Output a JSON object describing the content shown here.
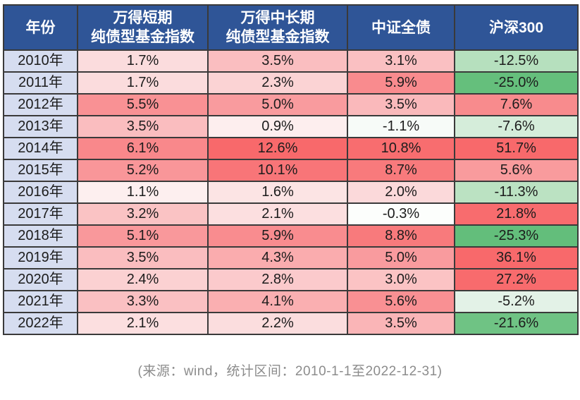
{
  "table": {
    "header": {
      "bg": "#2F5597",
      "text_color": "#FFFFFF",
      "columns": [
        {
          "name": "year",
          "lines": [
            "年份"
          ]
        },
        {
          "name": "wind-short-term-pure-bond-fund-index",
          "lines": [
            "万得短期",
            "纯债型基金指数"
          ]
        },
        {
          "name": "wind-mid-long-term-pure-bond-fund-index",
          "lines": [
            "万得中长期",
            "纯债型基金指数"
          ]
        },
        {
          "name": "csi-aggregate-bond",
          "lines": [
            "中证全债"
          ]
        },
        {
          "name": "csi-300",
          "lines": [
            "沪深300"
          ]
        }
      ]
    },
    "year_col_bg": "#D6DDF0",
    "border_color": "#3a3a3a",
    "rows": [
      {
        "year": "2010年",
        "cells": [
          {
            "value": "1.7%",
            "bg": "#FBDCDD"
          },
          {
            "value": "3.5%",
            "bg": "#FABEC0"
          },
          {
            "value": "3.1%",
            "bg": "#FAC0C2"
          },
          {
            "value": "-12.5%",
            "bg": "#B6E0BE"
          }
        ]
      },
      {
        "year": "2011年",
        "cells": [
          {
            "value": "1.7%",
            "bg": "#FBDCDD"
          },
          {
            "value": "2.3%",
            "bg": "#FBD3D4"
          },
          {
            "value": "5.9%",
            "bg": "#F98B8E"
          },
          {
            "value": "-25.0%",
            "bg": "#65BF7C"
          }
        ]
      },
      {
        "year": "2012年",
        "cells": [
          {
            "value": "5.5%",
            "bg": "#F99194"
          },
          {
            "value": "5.0%",
            "bg": "#F99B9E"
          },
          {
            "value": "3.5%",
            "bg": "#FAB9BB"
          },
          {
            "value": "7.6%",
            "bg": "#F88B8D"
          }
        ]
      },
      {
        "year": "2013年",
        "cells": [
          {
            "value": "3.5%",
            "bg": "#FABDBF"
          },
          {
            "value": "0.9%",
            "bg": "#FDEEEE"
          },
          {
            "value": "-1.1%",
            "bg": "#F7FBF8"
          },
          {
            "value": "-7.6%",
            "bg": "#D5EDDA"
          }
        ]
      },
      {
        "year": "2014年",
        "cells": [
          {
            "value": "6.1%",
            "bg": "#F9888B"
          },
          {
            "value": "12.6%",
            "bg": "#F8696B"
          },
          {
            "value": "10.8%",
            "bg": "#F86D6F"
          },
          {
            "value": "51.7%",
            "bg": "#F8696B"
          }
        ]
      },
      {
        "year": "2015年",
        "cells": [
          {
            "value": "5.2%",
            "bg": "#F99699"
          },
          {
            "value": "10.1%",
            "bg": "#F87578"
          },
          {
            "value": "8.7%",
            "bg": "#F87A7C"
          },
          {
            "value": "5.6%",
            "bg": "#F99B9D"
          }
        ]
      },
      {
        "year": "2016年",
        "cells": [
          {
            "value": "1.1%",
            "bg": "#FDEFEF"
          },
          {
            "value": "1.6%",
            "bg": "#FCE4E4"
          },
          {
            "value": "2.0%",
            "bg": "#FBD9DA"
          },
          {
            "value": "-11.3%",
            "bg": "#BBE2C2"
          }
        ]
      },
      {
        "year": "2017年",
        "cells": [
          {
            "value": "3.2%",
            "bg": "#FAC3C4"
          },
          {
            "value": "2.1%",
            "bg": "#FCDFE0"
          },
          {
            "value": "-0.3%",
            "bg": "#FCFEFC"
          },
          {
            "value": "21.8%",
            "bg": "#F86C6E"
          }
        ]
      },
      {
        "year": "2018年",
        "cells": [
          {
            "value": "5.1%",
            "bg": "#F9989B"
          },
          {
            "value": "5.9%",
            "bg": "#F98C8F"
          },
          {
            "value": "8.8%",
            "bg": "#F87A7C"
          },
          {
            "value": "-25.3%",
            "bg": "#63BE7B"
          }
        ]
      },
      {
        "year": "2019年",
        "cells": [
          {
            "value": "3.5%",
            "bg": "#FABDBF"
          },
          {
            "value": "4.3%",
            "bg": "#FAACAE"
          },
          {
            "value": "5.0%",
            "bg": "#F99B9E"
          },
          {
            "value": "36.1%",
            "bg": "#F8696B"
          }
        ]
      },
      {
        "year": "2020年",
        "cells": [
          {
            "value": "2.4%",
            "bg": "#FBD1D2"
          },
          {
            "value": "2.8%",
            "bg": "#FBCACC"
          },
          {
            "value": "3.0%",
            "bg": "#FBC3C4"
          },
          {
            "value": "27.2%",
            "bg": "#F86B6D"
          }
        ]
      },
      {
        "year": "2021年",
        "cells": [
          {
            "value": "3.3%",
            "bg": "#FAC0C2"
          },
          {
            "value": "4.1%",
            "bg": "#FAAFB1"
          },
          {
            "value": "5.6%",
            "bg": "#F99093"
          },
          {
            "value": "-5.2%",
            "bg": "#E3F2E7"
          }
        ]
      },
      {
        "year": "2022年",
        "cells": [
          {
            "value": "2.1%",
            "bg": "#FCDFE0"
          },
          {
            "value": "2.2%",
            "bg": "#FBDDDE"
          },
          {
            "value": "3.5%",
            "bg": "#FAB5B7"
          },
          {
            "value": "-21.6%",
            "bg": "#6FC384"
          }
        ]
      }
    ]
  },
  "footer": {
    "source_note": "(来源：wind，统计区间：2010-1-1至2022-12-31)",
    "text_color": "#8C8C8C"
  },
  "chart_data": {
    "type": "table",
    "title": "",
    "categories": [
      "2010年",
      "2011年",
      "2012年",
      "2013年",
      "2014年",
      "2015年",
      "2016年",
      "2017年",
      "2018年",
      "2019年",
      "2020年",
      "2021年",
      "2022年"
    ],
    "unit": "%",
    "series": [
      {
        "name": "万得短期纯债型基金指数",
        "values": [
          1.7,
          1.7,
          5.5,
          3.5,
          6.1,
          5.2,
          1.1,
          3.2,
          5.1,
          3.5,
          2.4,
          3.3,
          2.1
        ]
      },
      {
        "name": "万得中长期纯债型基金指数",
        "values": [
          3.5,
          2.3,
          5.0,
          0.9,
          12.6,
          10.1,
          1.6,
          2.1,
          5.9,
          4.3,
          2.8,
          4.1,
          2.2
        ]
      },
      {
        "name": "中证全债",
        "values": [
          3.1,
          5.9,
          3.5,
          -1.1,
          10.8,
          8.7,
          2.0,
          -0.3,
          8.8,
          5.0,
          3.0,
          5.6,
          3.5
        ]
      },
      {
        "name": "沪深300",
        "values": [
          -12.5,
          -25.0,
          7.6,
          -7.6,
          51.7,
          5.6,
          -11.3,
          21.8,
          -25.3,
          36.1,
          27.2,
          -5.2,
          -21.6
        ]
      }
    ],
    "color_coding": "red = higher positive return, white = near zero, green = negative return (Excel-style 3-color scale per column)",
    "annotation": "(来源：wind，统计区间：2010-1-1至2022-12-31)"
  }
}
